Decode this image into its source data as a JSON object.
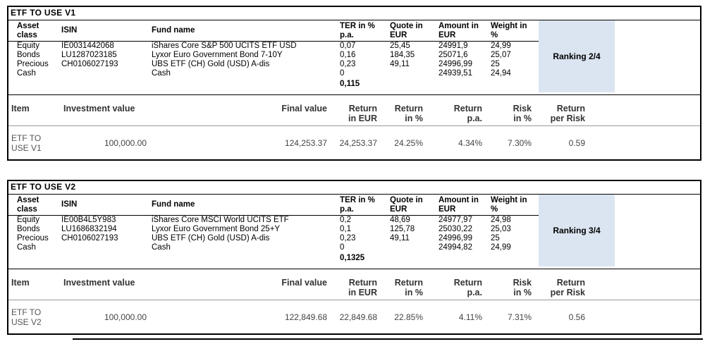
{
  "columns": {
    "asset": "Asset class",
    "isin": "ISIN",
    "fund": "Fund name",
    "ter": "TER in % p.a.",
    "quote": "Quote in EUR",
    "amount": "Amount in EUR",
    "weight": "Weight in %"
  },
  "summary_columns": {
    "h1": {
      "item": "Item",
      "investment": "Investment value",
      "final": "Final value",
      "ret_eur": "Return",
      "ret_pct": "Return",
      "ret_pa": "Return",
      "risk": "Risk",
      "ret_per_risk": "Return"
    },
    "h2": {
      "ret_eur": "in EUR",
      "ret_pct": "in %",
      "ret_pa": "p.a.",
      "risk": "in %",
      "ret_per_risk": "per Risk"
    }
  },
  "panels": [
    {
      "title": "ETF TO USE V1",
      "ranking": "Ranking 2/4",
      "rows": [
        {
          "asset": "Equity",
          "isin": "IE0031442068",
          "fund": "iShares Core S&P 500 UCITS ETF USD",
          "ter": "0,07",
          "quote": "25,45",
          "amount": "24991,9",
          "weight": "24,99"
        },
        {
          "asset": "Bonds",
          "isin": "LU1287023185",
          "fund": "Lyxor Euro Government Bond 7-10Y",
          "ter": "0,16",
          "quote": "184,35",
          "amount": "25071,6",
          "weight": "25,07"
        },
        {
          "asset": "Precious",
          "isin": "CH0106027193",
          "fund": "UBS ETF (CH) Gold (USD) A-dis",
          "ter": "0,23",
          "quote": "49,11",
          "amount": "24996,99",
          "weight": "25"
        },
        {
          "asset": "Cash",
          "isin": "",
          "fund": "Cash",
          "ter": "0",
          "quote": "",
          "amount": "24939,51",
          "weight": "24,94"
        }
      ],
      "ter_total": "0,115",
      "summary_row": {
        "item": "ETF TO USE V1",
        "investment": "100,000.00",
        "final": "124,253.37",
        "ret_eur": "24,253.37",
        "ret_pct": "24.25%",
        "ret_pa": "4.34%",
        "risk": "7.30%",
        "ret_per_risk": "0.59"
      }
    },
    {
      "title": "ETF TO USE V2",
      "ranking": "Ranking 3/4",
      "rows": [
        {
          "asset": "Equity",
          "isin": "IE00B4L5Y983",
          "fund": "iShares Core MSCI World UCITS ETF",
          "ter": "0,2",
          "quote": "48,69",
          "amount": "24977,97",
          "weight": "24,98"
        },
        {
          "asset": "Bonds",
          "isin": "LU1686832194",
          "fund": "Lyxor Euro Government Bond 25+Y",
          "ter": "0,1",
          "quote": "125,78",
          "amount": "25030,22",
          "weight": "25,03"
        },
        {
          "asset": "Precious",
          "isin": "CH0106027193",
          "fund": "UBS ETF (CH) Gold (USD) A-dis",
          "ter": "0,23",
          "quote": "49,11",
          "amount": "24996,99",
          "weight": "25"
        },
        {
          "asset": "Cash",
          "isin": "",
          "fund": "Cash",
          "ter": "0",
          "quote": "",
          "amount": "24994,82",
          "weight": "24,99"
        }
      ],
      "ter_total": "0,1325",
      "summary_row": {
        "item": "ETF TO USE V2",
        "investment": "100,000.00",
        "final": "122,849.68",
        "ret_eur": "22,849.68",
        "ret_pct": "22.85%",
        "ret_pa": "4.11%",
        "risk": "7.31%",
        "ret_per_risk": "0.56"
      }
    }
  ],
  "colors": {
    "ranking_bg": "#dbe5f1",
    "border": "#000000"
  }
}
